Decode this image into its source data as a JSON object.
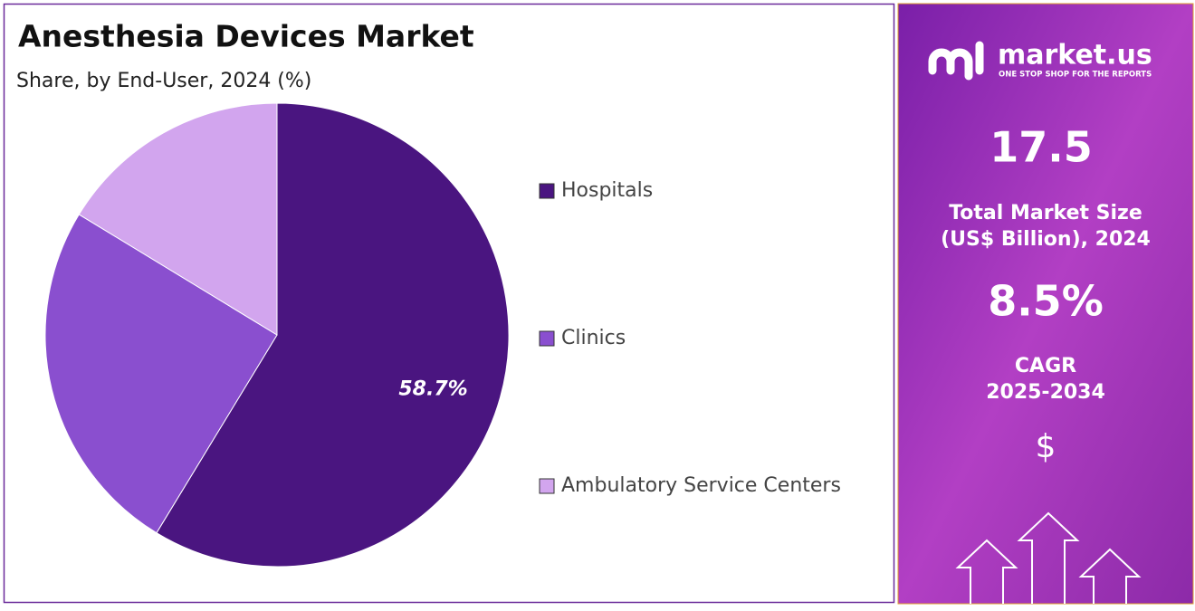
{
  "chart_data": {
    "type": "pie",
    "title": "Anesthesia Devices Market",
    "subtitle": "Share, by End-User, 2024 (%)",
    "categories": [
      "Hospitals",
      "Clinics",
      "Ambulatory Service Centers"
    ],
    "values": [
      58.7,
      25.0,
      16.3
    ],
    "value_labels": [
      "58.7%",
      null,
      null
    ],
    "colors": [
      "#4a1580",
      "#8a4fcf",
      "#d2a5ee"
    ],
    "legend": "right"
  },
  "sidebar": {
    "brand": "market.us",
    "tagline": "ONE STOP SHOP FOR THE REPORTS",
    "market_size": "17.5",
    "market_size_label": [
      "Total Market Size",
      "(US$ Billion), 2024"
    ],
    "cagr": "8.5%",
    "cagr_label": [
      "CAGR",
      "2025-2034"
    ],
    "currency": "$"
  }
}
